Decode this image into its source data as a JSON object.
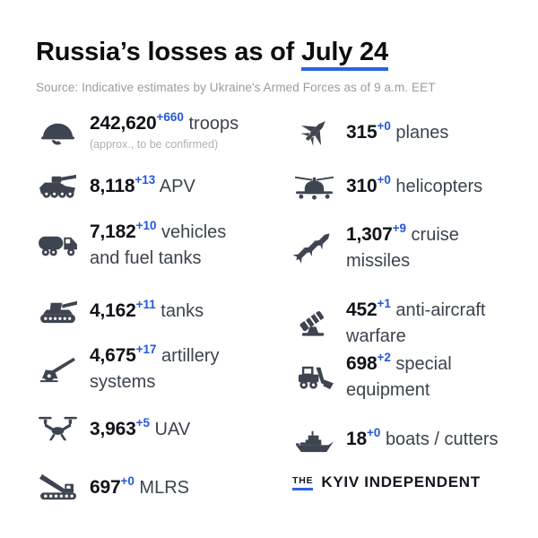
{
  "header": {
    "title_prefix": "Russia’s losses as of ",
    "title_date": "July 24",
    "source": "Source: Indicative estimates by Ukraine's Armed Forces as of 9 a.m. EET"
  },
  "stats": {
    "left": [
      {
        "icon": "helmet",
        "value": "242,620",
        "delta": "+660",
        "label": "troops",
        "note": "(approx., to be confirmed)"
      },
      {
        "icon": "apc",
        "value": "8,118",
        "delta": "+13",
        "label": "APV"
      },
      {
        "icon": "fuel-truck",
        "value": "7,182",
        "delta": "+10",
        "label": "vehicles and fuel tanks"
      },
      {
        "icon": "tank",
        "value": "4,162",
        "delta": "+11",
        "label": "tanks"
      },
      {
        "icon": "howitzer",
        "value": "4,675",
        "delta": "+17",
        "label": "artillery systems"
      },
      {
        "icon": "drone",
        "value": "3,963",
        "delta": "+5",
        "label": "UAV"
      },
      {
        "icon": "mlrs",
        "value": "697",
        "delta": "+0",
        "label": "MLRS"
      }
    ],
    "right": [
      {
        "icon": "fighter-jet",
        "value": "315",
        "delta": "+0",
        "label": "planes"
      },
      {
        "icon": "helicopter",
        "value": "310",
        "delta": "+0",
        "label": "helicopters"
      },
      {
        "icon": "missiles",
        "value": "1,307",
        "delta": "+9",
        "label": "cruise missiles"
      },
      {
        "icon": "anti-aircraft",
        "value": "452",
        "delta": "+1",
        "label": "anti-aircraft warfare"
      },
      {
        "icon": "loader",
        "value": "698",
        "delta": "+2",
        "label": "special equipment"
      },
      {
        "icon": "warship",
        "value": "18",
        "delta": "+0",
        "label": "boats / cutters"
      }
    ]
  },
  "logo": {
    "the": "THE",
    "name": "KYIV INDEPENDENT"
  },
  "colors": {
    "background": "#ffffff",
    "accent_blue": "#2a63e2",
    "delta_blue": "#2457db",
    "icon_dark": "#3e4450",
    "number_dark": "#101319",
    "label_gray": "#3c434d",
    "source_gray": "#9a9ba0",
    "note_gray": "#aeb0b6",
    "logo_dark": "#14161f"
  }
}
